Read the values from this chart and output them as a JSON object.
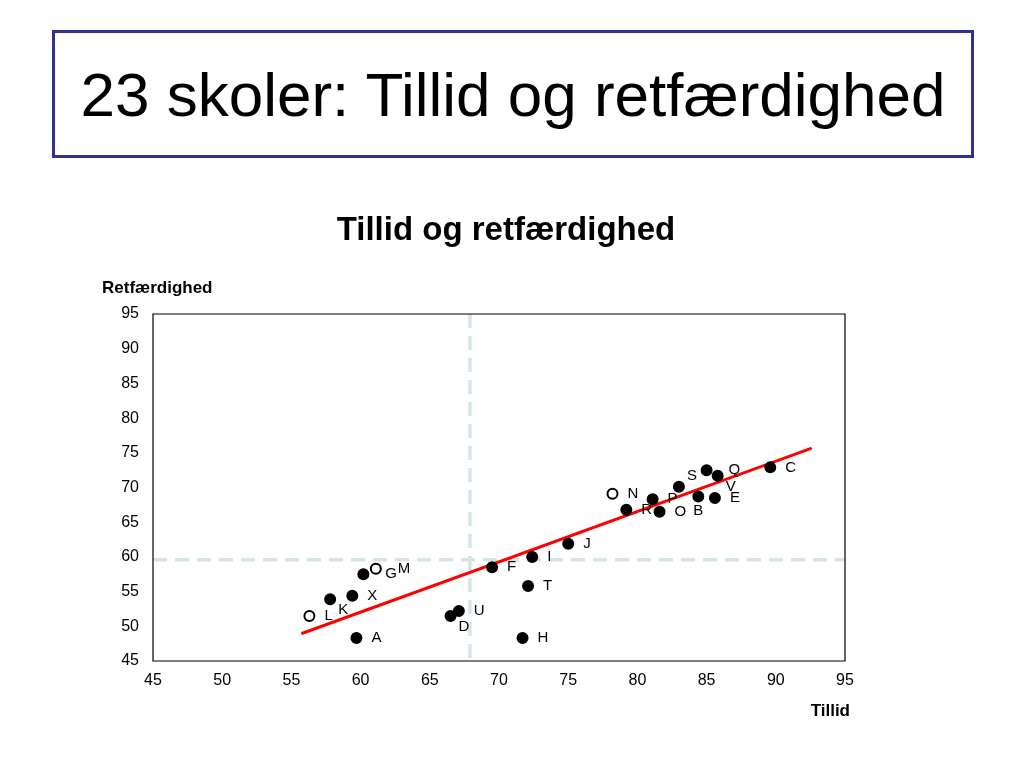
{
  "chart_data": {
    "type": "scatter",
    "title": "23 skoler: Tillid og retfærdighed",
    "subtitle": "Tillid og retfærdighed",
    "xlabel": "Tillid",
    "ylabel": "Retfærdighed",
    "marker": "circle",
    "legend": false,
    "series": [
      {
        "color": "#000000",
        "x": [
          59.7,
          57.8,
          59.4,
          60.2,
          66.5,
          67.1,
          69.5,
          72.4,
          72.1,
          71.7,
          75.0,
          79.2,
          81.1,
          81.6,
          83.0,
          84.4,
          85.0,
          85.8,
          85.6,
          89.6
        ],
        "values": [
          48.3,
          53.9,
          54.4,
          57.5,
          51.5,
          52.2,
          58.5,
          60.0,
          55.8,
          48.3,
          61.9,
          66.8,
          68.3,
          66.5,
          70.1,
          68.7,
          72.5,
          71.7,
          68.5,
          72.9
        ]
      },
      {
        "color": "#ffffff",
        "x": [
          56.3,
          61.1,
          78.2
        ],
        "values": [
          51.5,
          58.3,
          69.1
        ]
      },
      {
        "type": "line",
        "color": "#ff0000",
        "marker": "none",
        "x": [
          55.8,
          92.5
        ],
        "values": [
          49.0,
          75.6
        ]
      }
    ],
    "xlim": [
      45,
      95
    ],
    "ylim": [
      45,
      95
    ],
    "xticks": [
      45,
      50,
      55,
      60,
      65,
      70,
      75,
      80,
      85,
      90,
      95
    ],
    "yticks": [
      45,
      50,
      55,
      60,
      65,
      70,
      75,
      80,
      85,
      90,
      95
    ],
    "ref_lines": [
      {
        "axis": "x",
        "value": 67.9,
        "color": "#d3e5e5",
        "line_style": "dashed"
      },
      {
        "axis": "y",
        "value": 59.6,
        "color": "#d3e5e5",
        "line_style": "dashed"
      }
    ],
    "annotations": [
      {
        "text": "A",
        "x": 59.7,
        "y": 48.3
      },
      {
        "text": "K",
        "x": 57.8,
        "y": 53.9
      },
      {
        "text": "X",
        "x": 59.4,
        "y": 54.4
      },
      {
        "text": "G",
        "x": 60.2,
        "y": 57.5
      },
      {
        "text": "U",
        "x": 67.1,
        "y": 52.2
      },
      {
        "text": "D",
        "x": 66.5,
        "y": 51.5
      },
      {
        "text": "F",
        "x": 69.5,
        "y": 58.5
      },
      {
        "text": "I",
        "x": 72.4,
        "y": 60.0
      },
      {
        "text": "T",
        "x": 72.1,
        "y": 55.8
      },
      {
        "text": "H",
        "x": 71.7,
        "y": 48.3
      },
      {
        "text": "J",
        "x": 75.0,
        "y": 61.9
      },
      {
        "text": "R",
        "x": 79.2,
        "y": 66.8
      },
      {
        "text": "P",
        "x": 81.1,
        "y": 68.3
      },
      {
        "text": "O",
        "x": 81.6,
        "y": 66.5
      },
      {
        "text": "S",
        "x": 83.0,
        "y": 70.1
      },
      {
        "text": "E",
        "x": 85.6,
        "y": 68.5
      },
      {
        "text": "B",
        "x": 84.4,
        "y": 68.7
      },
      {
        "text": "Q",
        "x": 85.0,
        "y": 72.5
      },
      {
        "text": "V",
        "x": 85.8,
        "y": 71.7
      },
      {
        "text": "C",
        "x": 89.6,
        "y": 72.9
      },
      {
        "text": "L",
        "x": 56.3,
        "y": 51.5
      },
      {
        "text": "M",
        "x": 61.1,
        "y": 58.3
      },
      {
        "text": "N",
        "x": 78.2,
        "y": 69.1
      }
    ]
  }
}
